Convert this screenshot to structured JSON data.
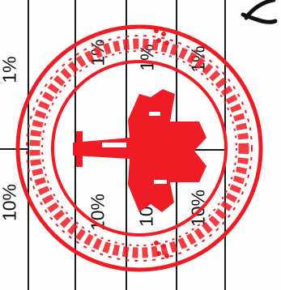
{
  "document": {
    "table": {
      "column_header_cells": [
        "10%",
        "1%"
      ],
      "rows": [
        {
          "col_a": "10%",
          "col_b": "1%"
        },
        {
          "col_a": "10%",
          "col_b": "1%"
        },
        {
          "col_a": "10%",
          "col_b": "1%"
        }
      ]
    },
    "seal": {
      "type": "official-round-seal",
      "ink_color": "#ee1c25"
    },
    "signature": {
      "type": "handwritten-signature",
      "ink_color": "#111111"
    }
  }
}
